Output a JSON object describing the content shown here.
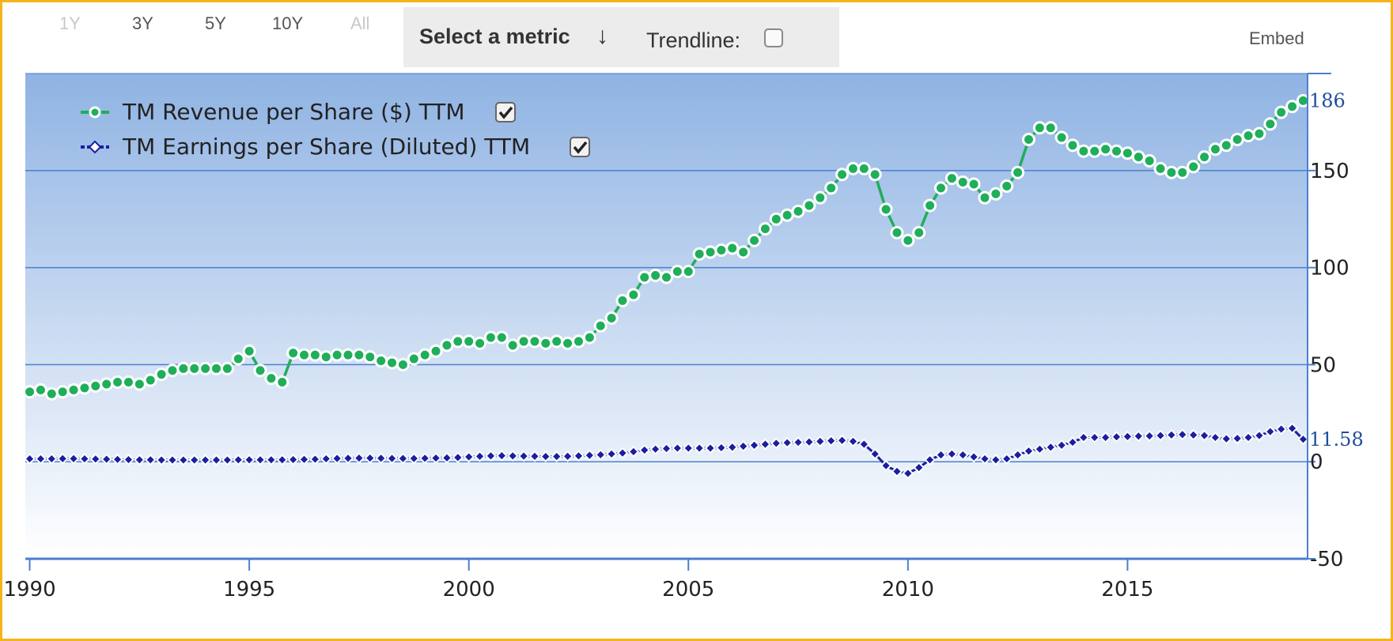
{
  "range_buttons": [
    {
      "label": "1Y",
      "disabled": true
    },
    {
      "label": "3Y",
      "disabled": false
    },
    {
      "label": "5Y",
      "disabled": false
    },
    {
      "label": "10Y",
      "disabled": false
    },
    {
      "label": "All",
      "disabled": true
    }
  ],
  "toolbar": {
    "select_metric_label": "Select a metric",
    "arrow_glyph": "↓",
    "trendline_label": "Trendline:",
    "trendline_checked": false,
    "embed_label": "Embed"
  },
  "colors": {
    "frame": "#f5b41c",
    "revenue_series": "#1fae59",
    "eps_series": "#1a1ea0",
    "plot_bg_top": "#8fb3e3",
    "plot_bg_bottom": "#ffffff",
    "grid": "#4a7fd0",
    "last_value_label": "#1f4e9c"
  },
  "chart_data": {
    "type": "line",
    "title": "",
    "xlabel": "",
    "ylabel": "",
    "xlim": [
      1989.9,
      2019.1
    ],
    "ylim": [
      -50,
      200
    ],
    "x_ticks": [
      1990,
      1995,
      2000,
      2005,
      2010,
      2015
    ],
    "y_ticks": [
      -50,
      0,
      50,
      100,
      150
    ],
    "grid": true,
    "legend": "top-left",
    "series": [
      {
        "name": "TM Revenue per Share ($) TTM",
        "checked": true,
        "last_label": "186",
        "points": [
          [
            1990.0,
            36
          ],
          [
            1990.25,
            37
          ],
          [
            1990.5,
            35
          ],
          [
            1990.75,
            36
          ],
          [
            1991.0,
            37
          ],
          [
            1991.25,
            38
          ],
          [
            1991.5,
            39
          ],
          [
            1991.75,
            40
          ],
          [
            1992.0,
            41
          ],
          [
            1992.25,
            41
          ],
          [
            1992.5,
            40
          ],
          [
            1992.75,
            42
          ],
          [
            1993.0,
            45
          ],
          [
            1993.25,
            47
          ],
          [
            1993.5,
            48
          ],
          [
            1993.75,
            48
          ],
          [
            1994.0,
            48
          ],
          [
            1994.25,
            48
          ],
          [
            1994.5,
            48
          ],
          [
            1994.75,
            53
          ],
          [
            1995.0,
            57
          ],
          [
            1995.25,
            47
          ],
          [
            1995.5,
            43
          ],
          [
            1995.75,
            41
          ],
          [
            1996.0,
            56
          ],
          [
            1996.25,
            55
          ],
          [
            1996.5,
            55
          ],
          [
            1996.75,
            54
          ],
          [
            1997.0,
            55
          ],
          [
            1997.25,
            55
          ],
          [
            1997.5,
            55
          ],
          [
            1997.75,
            54
          ],
          [
            1998.0,
            52
          ],
          [
            1998.25,
            51
          ],
          [
            1998.5,
            50
          ],
          [
            1998.75,
            53
          ],
          [
            1999.0,
            55
          ],
          [
            1999.25,
            57
          ],
          [
            1999.5,
            60
          ],
          [
            1999.75,
            62
          ],
          [
            2000.0,
            62
          ],
          [
            2000.25,
            61
          ],
          [
            2000.5,
            64
          ],
          [
            2000.75,
            64
          ],
          [
            2001.0,
            60
          ],
          [
            2001.25,
            62
          ],
          [
            2001.5,
            62
          ],
          [
            2001.75,
            61
          ],
          [
            2002.0,
            62
          ],
          [
            2002.25,
            61
          ],
          [
            2002.5,
            62
          ],
          [
            2002.75,
            64
          ],
          [
            2003.0,
            70
          ],
          [
            2003.25,
            74
          ],
          [
            2003.5,
            83
          ],
          [
            2003.75,
            86
          ],
          [
            2004.0,
            95
          ],
          [
            2004.25,
            96
          ],
          [
            2004.5,
            95
          ],
          [
            2004.75,
            98
          ],
          [
            2005.0,
            98
          ],
          [
            2005.25,
            107
          ],
          [
            2005.5,
            108
          ],
          [
            2005.75,
            109
          ],
          [
            2006.0,
            110
          ],
          [
            2006.25,
            108
          ],
          [
            2006.5,
            114
          ],
          [
            2006.75,
            120
          ],
          [
            2007.0,
            125
          ],
          [
            2007.25,
            127
          ],
          [
            2007.5,
            129
          ],
          [
            2007.75,
            132
          ],
          [
            2008.0,
            136
          ],
          [
            2008.25,
            141
          ],
          [
            2008.5,
            148
          ],
          [
            2008.75,
            151
          ],
          [
            2009.0,
            151
          ],
          [
            2009.25,
            148
          ],
          [
            2009.5,
            130
          ],
          [
            2009.75,
            118
          ],
          [
            2010.0,
            114
          ],
          [
            2010.25,
            118
          ],
          [
            2010.5,
            132
          ],
          [
            2010.75,
            141
          ],
          [
            2011.0,
            146
          ],
          [
            2011.25,
            144
          ],
          [
            2011.5,
            143
          ],
          [
            2011.75,
            136
          ],
          [
            2012.0,
            138
          ],
          [
            2012.25,
            142
          ],
          [
            2012.5,
            149
          ],
          [
            2012.75,
            166
          ],
          [
            2013.0,
            172
          ],
          [
            2013.25,
            172
          ],
          [
            2013.5,
            167
          ],
          [
            2013.75,
            163
          ],
          [
            2014.0,
            160
          ],
          [
            2014.25,
            160
          ],
          [
            2014.5,
            161
          ],
          [
            2014.75,
            160
          ],
          [
            2015.0,
            159
          ],
          [
            2015.25,
            157
          ],
          [
            2015.5,
            155
          ],
          [
            2015.75,
            151
          ],
          [
            2016.0,
            149
          ],
          [
            2016.25,
            149
          ],
          [
            2016.5,
            152
          ],
          [
            2016.75,
            157
          ],
          [
            2017.0,
            161
          ],
          [
            2017.25,
            163
          ],
          [
            2017.5,
            166
          ],
          [
            2017.75,
            168
          ],
          [
            2018.0,
            169
          ],
          [
            2018.25,
            174
          ],
          [
            2018.5,
            180
          ],
          [
            2018.75,
            183
          ],
          [
            2019.0,
            186
          ]
        ]
      },
      {
        "name": "TM Earnings per Share (Diluted) TTM",
        "checked": true,
        "last_label": "11.58",
        "points": [
          [
            1990.0,
            1.5
          ],
          [
            1990.25,
            1.5
          ],
          [
            1990.5,
            1.5
          ],
          [
            1990.75,
            1.6
          ],
          [
            1991.0,
            1.6
          ],
          [
            1991.25,
            1.5
          ],
          [
            1991.5,
            1.4
          ],
          [
            1991.75,
            1.3
          ],
          [
            1992.0,
            1.2
          ],
          [
            1992.25,
            1.1
          ],
          [
            1992.5,
            1.0
          ],
          [
            1992.75,
            1.0
          ],
          [
            1993.0,
            0.9
          ],
          [
            1993.25,
            0.9
          ],
          [
            1993.5,
            0.9
          ],
          [
            1993.75,
            0.9
          ],
          [
            1994.0,
            0.9
          ],
          [
            1994.25,
            0.9
          ],
          [
            1994.5,
            0.9
          ],
          [
            1994.75,
            1.0
          ],
          [
            1995.0,
            1.0
          ],
          [
            1995.25,
            1.0
          ],
          [
            1995.5,
            1.0
          ],
          [
            1995.75,
            1.0
          ],
          [
            1996.0,
            1.1
          ],
          [
            1996.25,
            1.2
          ],
          [
            1996.5,
            1.3
          ],
          [
            1996.75,
            1.5
          ],
          [
            1997.0,
            1.7
          ],
          [
            1997.25,
            1.8
          ],
          [
            1997.5,
            1.9
          ],
          [
            1997.75,
            1.9
          ],
          [
            1998.0,
            1.8
          ],
          [
            1998.25,
            1.7
          ],
          [
            1998.5,
            1.7
          ],
          [
            1998.75,
            1.7
          ],
          [
            1999.0,
            1.8
          ],
          [
            1999.25,
            1.9
          ],
          [
            1999.5,
            2.0
          ],
          [
            1999.75,
            2.2
          ],
          [
            2000.0,
            2.5
          ],
          [
            2000.25,
            2.8
          ],
          [
            2000.5,
            3.0
          ],
          [
            2000.75,
            3.1
          ],
          [
            2001.0,
            3.0
          ],
          [
            2001.25,
            2.9
          ],
          [
            2001.5,
            2.8
          ],
          [
            2001.75,
            2.7
          ],
          [
            2002.0,
            2.7
          ],
          [
            2002.25,
            2.8
          ],
          [
            2002.5,
            3.0
          ],
          [
            2002.75,
            3.3
          ],
          [
            2003.0,
            3.6
          ],
          [
            2003.25,
            4.0
          ],
          [
            2003.5,
            4.5
          ],
          [
            2003.75,
            5.2
          ],
          [
            2004.0,
            6.0
          ],
          [
            2004.25,
            6.5
          ],
          [
            2004.5,
            6.8
          ],
          [
            2004.75,
            7.0
          ],
          [
            2005.0,
            7.0
          ],
          [
            2005.25,
            7.0
          ],
          [
            2005.5,
            7.0
          ],
          [
            2005.75,
            7.2
          ],
          [
            2006.0,
            7.5
          ],
          [
            2006.25,
            8.0
          ],
          [
            2006.5,
            8.5
          ],
          [
            2006.75,
            9.0
          ],
          [
            2007.0,
            9.5
          ],
          [
            2007.25,
            9.8
          ],
          [
            2007.5,
            10.0
          ],
          [
            2007.75,
            10.2
          ],
          [
            2008.0,
            10.5
          ],
          [
            2008.25,
            10.8
          ],
          [
            2008.5,
            11.0
          ],
          [
            2008.75,
            10.5
          ],
          [
            2009.0,
            9.0
          ],
          [
            2009.25,
            4.0
          ],
          [
            2009.5,
            -2.0
          ],
          [
            2009.75,
            -5.0
          ],
          [
            2010.0,
            -6.0
          ],
          [
            2010.25,
            -3.0
          ],
          [
            2010.5,
            1.0
          ],
          [
            2010.75,
            3.5
          ],
          [
            2011.0,
            4.0
          ],
          [
            2011.25,
            3.5
          ],
          [
            2011.5,
            2.5
          ],
          [
            2011.75,
            1.5
          ],
          [
            2012.0,
            1.0
          ],
          [
            2012.25,
            1.5
          ],
          [
            2012.5,
            3.5
          ],
          [
            2012.75,
            5.5
          ],
          [
            2013.0,
            6.5
          ],
          [
            2013.25,
            7.5
          ],
          [
            2013.5,
            8.5
          ],
          [
            2013.75,
            10.0
          ],
          [
            2014.0,
            12.5
          ],
          [
            2014.25,
            12.5
          ],
          [
            2014.5,
            12.5
          ],
          [
            2014.75,
            12.8
          ],
          [
            2015.0,
            13.0
          ],
          [
            2015.25,
            13.2
          ],
          [
            2015.5,
            13.3
          ],
          [
            2015.75,
            13.5
          ],
          [
            2016.0,
            13.8
          ],
          [
            2016.25,
            14.0
          ],
          [
            2016.5,
            13.8
          ],
          [
            2016.75,
            13.5
          ],
          [
            2017.0,
            12.5
          ],
          [
            2017.25,
            11.8
          ],
          [
            2017.5,
            12.0
          ],
          [
            2017.75,
            12.5
          ],
          [
            2018.0,
            13.5
          ],
          [
            2018.25,
            15.5
          ],
          [
            2018.5,
            16.8
          ],
          [
            2018.75,
            17.2
          ],
          [
            2019.0,
            11.58
          ]
        ]
      }
    ]
  }
}
